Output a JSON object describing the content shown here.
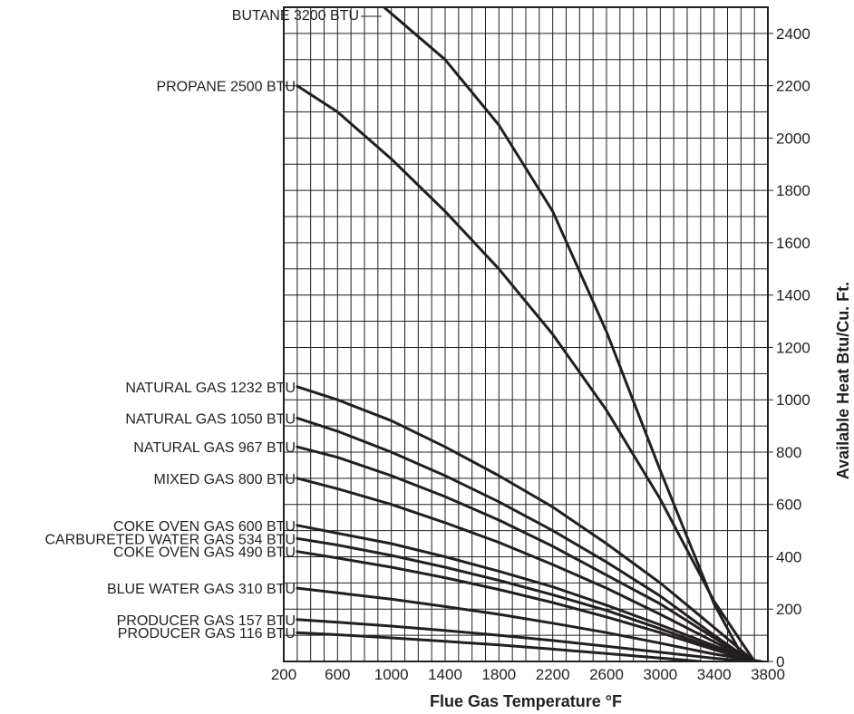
{
  "chart_data": {
    "type": "line",
    "xlabel": "Flue Gas Temperature °F",
    "ylabel": "Available Heat Btu/Cu. Ft.",
    "xlim": [
      200,
      3800
    ],
    "ylim": [
      0,
      2500
    ],
    "x_ticks": [
      200,
      600,
      1000,
      1400,
      1800,
      2200,
      2600,
      3000,
      3400,
      3800
    ],
    "x_tick_labels": [
      "200",
      "600",
      "1000",
      "1400",
      "1800",
      "2200",
      "2600",
      "3000",
      "3400",
      "3800"
    ],
    "y_ticks": [
      0,
      200,
      400,
      600,
      800,
      1000,
      1200,
      1400,
      1600,
      1800,
      2000,
      2200,
      2400
    ],
    "y_tick_labels": [
      "0",
      "200",
      "400",
      "600",
      "800",
      "1000",
      "1200",
      "1400",
      "1600",
      "1800",
      "2000",
      "2200",
      "2400"
    ],
    "grid": true,
    "y_axis_side": "right",
    "series": [
      {
        "name": "BUTANE 3200 BTU",
        "points": [
          [
            900,
            2520
          ],
          [
            1400,
            2300
          ],
          [
            1800,
            2050
          ],
          [
            2200,
            1720
          ],
          [
            2600,
            1260
          ],
          [
            3000,
            730
          ],
          [
            3400,
            220
          ],
          [
            3600,
            30
          ],
          [
            3680,
            0
          ]
        ]
      },
      {
        "name": "PROPANE 2500 BTU",
        "points": [
          [
            300,
            2200
          ],
          [
            600,
            2100
          ],
          [
            1000,
            1920
          ],
          [
            1400,
            1720
          ],
          [
            1800,
            1500
          ],
          [
            2200,
            1250
          ],
          [
            2600,
            960
          ],
          [
            3000,
            620
          ],
          [
            3400,
            230
          ],
          [
            3700,
            0
          ]
        ]
      },
      {
        "name": "NATURAL GAS 1232 BTU",
        "points": [
          [
            300,
            1050
          ],
          [
            600,
            1000
          ],
          [
            1000,
            920
          ],
          [
            1400,
            820
          ],
          [
            1800,
            710
          ],
          [
            2200,
            590
          ],
          [
            2600,
            450
          ],
          [
            3000,
            300
          ],
          [
            3400,
            130
          ],
          [
            3700,
            0
          ]
        ]
      },
      {
        "name": "NATURAL GAS 1050 BTU",
        "points": [
          [
            300,
            930
          ],
          [
            600,
            880
          ],
          [
            1000,
            800
          ],
          [
            1400,
            710
          ],
          [
            1800,
            610
          ],
          [
            2200,
            500
          ],
          [
            2600,
            380
          ],
          [
            3000,
            250
          ],
          [
            3400,
            100
          ],
          [
            3680,
            0
          ]
        ]
      },
      {
        "name": "NATURAL GAS 967 BTU",
        "points": [
          [
            300,
            820
          ],
          [
            600,
            780
          ],
          [
            1000,
            710
          ],
          [
            1400,
            630
          ],
          [
            1800,
            540
          ],
          [
            2200,
            440
          ],
          [
            2600,
            330
          ],
          [
            3000,
            220
          ],
          [
            3400,
            90
          ],
          [
            3680,
            0
          ]
        ]
      },
      {
        "name": "MIXED GAS 800 BTU",
        "points": [
          [
            300,
            700
          ],
          [
            600,
            660
          ],
          [
            1000,
            600
          ],
          [
            1400,
            530
          ],
          [
            1800,
            455
          ],
          [
            2200,
            370
          ],
          [
            2600,
            280
          ],
          [
            3000,
            180
          ],
          [
            3400,
            75
          ],
          [
            3680,
            0
          ]
        ]
      },
      {
        "name": "COKE OVEN GAS 600 BTU",
        "points": [
          [
            300,
            520
          ],
          [
            600,
            490
          ],
          [
            1000,
            450
          ],
          [
            1400,
            400
          ],
          [
            1800,
            345
          ],
          [
            2200,
            285
          ],
          [
            2600,
            215
          ],
          [
            3000,
            140
          ],
          [
            3400,
            60
          ],
          [
            3700,
            0
          ]
        ]
      },
      {
        "name": "CARBURETED WATER GAS 534 BTU",
        "points": [
          [
            300,
            470
          ],
          [
            600,
            445
          ],
          [
            1000,
            405
          ],
          [
            1400,
            360
          ],
          [
            1800,
            310
          ],
          [
            2200,
            255
          ],
          [
            2600,
            195
          ],
          [
            3000,
            125
          ],
          [
            3400,
            50
          ],
          [
            3700,
            0
          ]
        ]
      },
      {
        "name": "COKE OVEN GAS 490 BTU",
        "points": [
          [
            300,
            420
          ],
          [
            600,
            395
          ],
          [
            1000,
            360
          ],
          [
            1400,
            320
          ],
          [
            1800,
            275
          ],
          [
            2200,
            225
          ],
          [
            2600,
            170
          ],
          [
            3000,
            110
          ],
          [
            3400,
            45
          ],
          [
            3700,
            0
          ]
        ]
      },
      {
        "name": "BLUE WATER GAS 310 BTU",
        "points": [
          [
            300,
            280
          ],
          [
            600,
            262
          ],
          [
            1000,
            238
          ],
          [
            1400,
            210
          ],
          [
            1800,
            180
          ],
          [
            2200,
            146
          ],
          [
            2600,
            110
          ],
          [
            3000,
            70
          ],
          [
            3400,
            28
          ],
          [
            3750,
            0
          ]
        ]
      },
      {
        "name": "PRODUCER GAS 157 BTU",
        "points": [
          [
            300,
            160
          ],
          [
            600,
            150
          ],
          [
            1000,
            135
          ],
          [
            1400,
            118
          ],
          [
            1800,
            100
          ],
          [
            2200,
            80
          ],
          [
            2600,
            58
          ],
          [
            3000,
            35
          ],
          [
            3400,
            12
          ],
          [
            3700,
            0
          ]
        ]
      },
      {
        "name": "PRODUCER GAS 116 BTU",
        "points": [
          [
            300,
            110
          ],
          [
            600,
            102
          ],
          [
            1000,
            90
          ],
          [
            1400,
            77
          ],
          [
            1800,
            63
          ],
          [
            2200,
            47
          ],
          [
            2600,
            30
          ],
          [
            3000,
            13
          ],
          [
            3300,
            0
          ]
        ]
      }
    ]
  }
}
